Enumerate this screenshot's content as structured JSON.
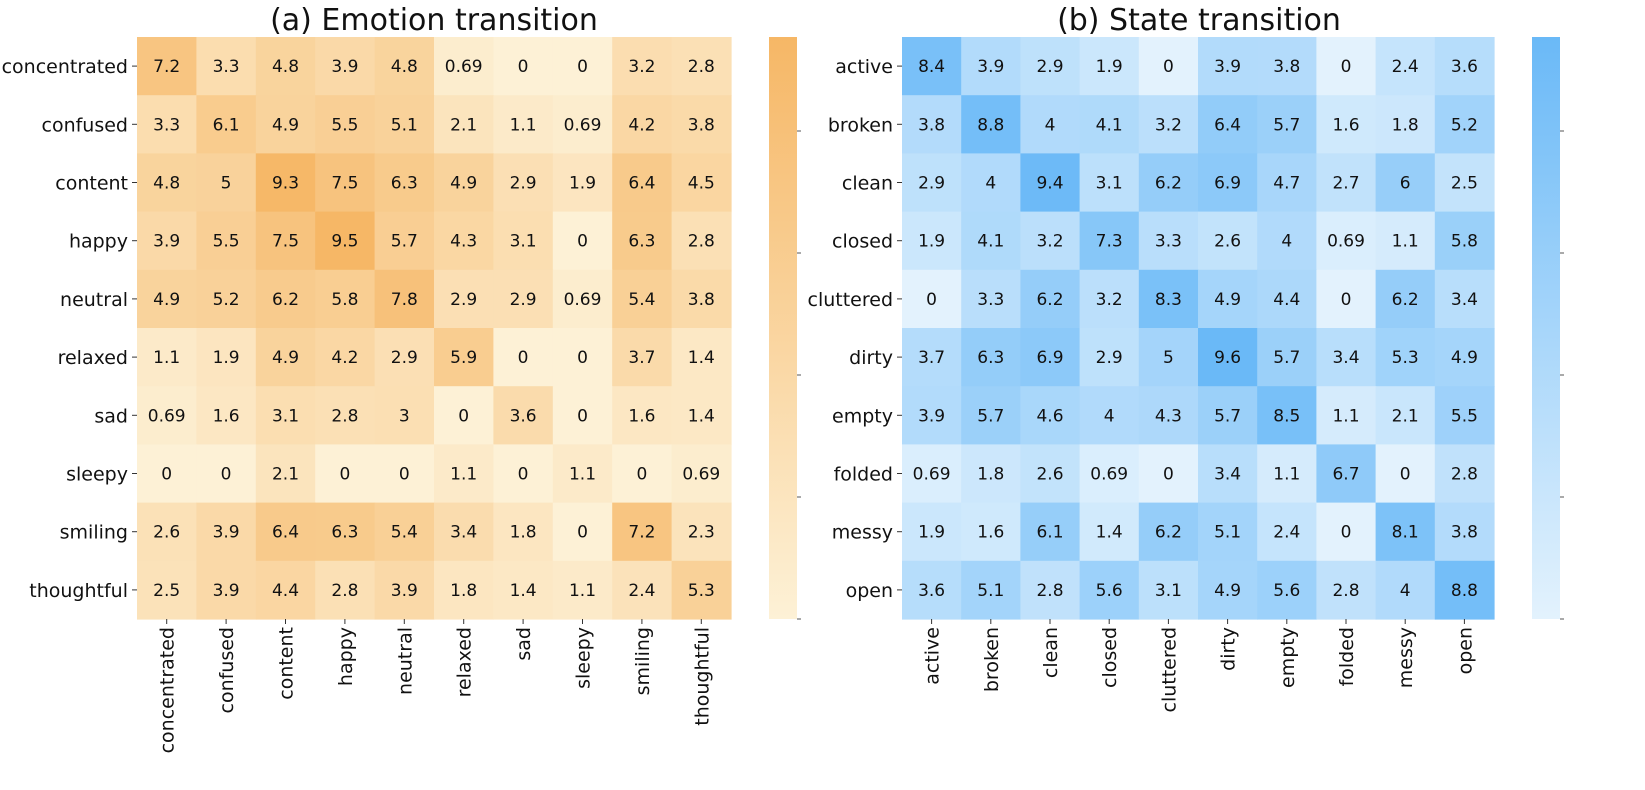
{
  "chart_data": [
    {
      "type": "heatmap",
      "title": "(a) Emotion transition",
      "xlabel": "",
      "ylabel": "",
      "rows": [
        "concentrated",
        "confused",
        "content",
        "happy",
        "neutral",
        "relaxed",
        "sad",
        "sleepy",
        "smiling",
        "thoughtful"
      ],
      "columns": [
        "concentrated",
        "confused",
        "content",
        "happy",
        "neutral",
        "relaxed",
        "sad",
        "sleepy",
        "smiling",
        "thoughtful"
      ],
      "values": [
        [
          7.2,
          3.3,
          4.8,
          3.9,
          4.8,
          0.69,
          0,
          0,
          3.2,
          2.8
        ],
        [
          3.3,
          6.1,
          4.9,
          5.5,
          5.1,
          2.1,
          1.1,
          0.69,
          4.2,
          3.8
        ],
        [
          4.8,
          5,
          9.3,
          7.5,
          6.3,
          4.9,
          2.9,
          1.9,
          6.4,
          4.5
        ],
        [
          3.9,
          5.5,
          7.5,
          9.5,
          5.7,
          4.3,
          3.1,
          0,
          6.3,
          2.8
        ],
        [
          4.9,
          5.2,
          6.2,
          5.8,
          7.8,
          2.9,
          2.9,
          0.69,
          5.4,
          3.8
        ],
        [
          1.1,
          1.9,
          4.9,
          4.2,
          2.9,
          5.9,
          0,
          0,
          3.7,
          1.4
        ],
        [
          0.69,
          1.6,
          3.1,
          2.8,
          3,
          0,
          3.6,
          0,
          1.6,
          1.4
        ],
        [
          0,
          0,
          2.1,
          0,
          0,
          1.1,
          0,
          1.1,
          0,
          0.69
        ],
        [
          2.6,
          3.9,
          6.4,
          6.3,
          5.4,
          3.4,
          1.8,
          0,
          7.2,
          2.3
        ],
        [
          2.5,
          3.9,
          4.4,
          2.8,
          3.9,
          1.8,
          1.4,
          1.1,
          2.4,
          5.3
        ]
      ],
      "colorscale": [
        "#fdf1d6",
        "#f6b766"
      ],
      "colorbar_range": [
        0,
        9.5
      ],
      "colorbar_ticklabels": "none"
    },
    {
      "type": "heatmap",
      "title": "(b) State transition",
      "xlabel": "",
      "ylabel": "",
      "rows": [
        "active",
        "broken",
        "clean",
        "closed",
        "cluttered",
        "dirty",
        "empty",
        "folded",
        "messy",
        "open"
      ],
      "columns": [
        "active",
        "broken",
        "clean",
        "closed",
        "cluttered",
        "dirty",
        "empty",
        "folded",
        "messy",
        "open"
      ],
      "values": [
        [
          8.4,
          3.9,
          2.9,
          1.9,
          0,
          3.9,
          3.8,
          0,
          2.4,
          3.6
        ],
        [
          3.8,
          8.8,
          4,
          4.1,
          3.2,
          6.4,
          5.7,
          1.6,
          1.8,
          5.2
        ],
        [
          2.9,
          4,
          9.4,
          3.1,
          6.2,
          6.9,
          4.7,
          2.7,
          6,
          2.5
        ],
        [
          1.9,
          4.1,
          3.2,
          7.3,
          3.3,
          2.6,
          4,
          0.69,
          1.1,
          5.8
        ],
        [
          0,
          3.3,
          6.2,
          3.2,
          8.3,
          4.9,
          4.4,
          0,
          6.2,
          3.4
        ],
        [
          3.7,
          6.3,
          6.9,
          2.9,
          5,
          9.6,
          5.7,
          3.4,
          5.3,
          4.9
        ],
        [
          3.9,
          5.7,
          4.6,
          4,
          4.3,
          5.7,
          8.5,
          1.1,
          2.1,
          5.5
        ],
        [
          0.69,
          1.8,
          2.6,
          0.69,
          0,
          3.4,
          1.1,
          6.7,
          0,
          2.8
        ],
        [
          1.9,
          1.6,
          6.1,
          1.4,
          6.2,
          5.1,
          2.4,
          0,
          8.1,
          3.8
        ],
        [
          3.6,
          5.1,
          2.8,
          5.6,
          3.1,
          4.9,
          5.6,
          2.8,
          4,
          8.8
        ]
      ],
      "colorscale": [
        "#e3f2fd",
        "#6ab9f7"
      ],
      "colorbar_range": [
        0,
        9.6
      ],
      "colorbar_ticklabels": "none"
    }
  ]
}
